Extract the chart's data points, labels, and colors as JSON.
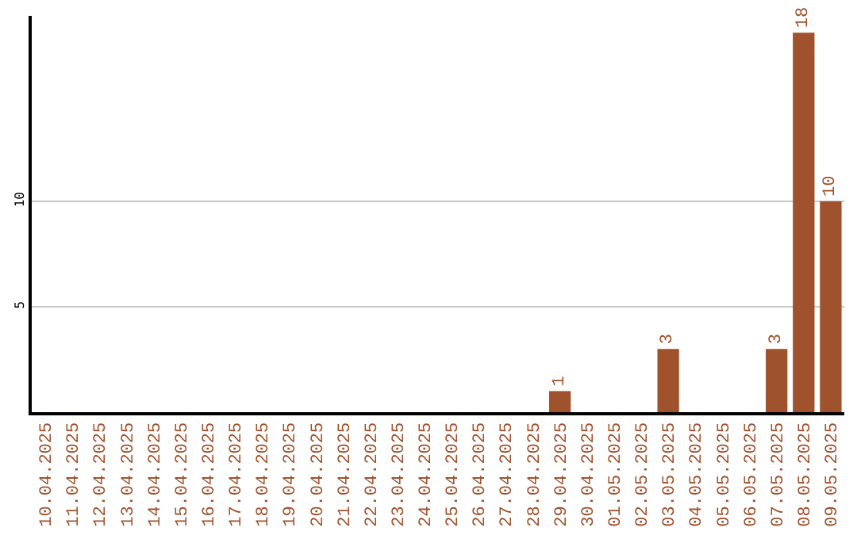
{
  "chart_data": {
    "type": "bar",
    "categories": [
      "10.04.2025",
      "11.04.2025",
      "12.04.2025",
      "13.04.2025",
      "14.04.2025",
      "15.04.2025",
      "16.04.2025",
      "17.04.2025",
      "18.04.2025",
      "19.04.2025",
      "20.04.2025",
      "21.04.2025",
      "22.04.2025",
      "23.04.2025",
      "24.04.2025",
      "25.04.2025",
      "26.04.2025",
      "27.04.2025",
      "28.04.2025",
      "29.04.2025",
      "30.04.2025",
      "01.05.2025",
      "02.05.2025",
      "03.05.2025",
      "04.05.2025",
      "05.05.2025",
      "06.05.2025",
      "07.05.2025",
      "08.05.2025",
      "09.05.2025"
    ],
    "values": [
      0,
      0,
      0,
      0,
      0,
      0,
      0,
      0,
      0,
      0,
      0,
      0,
      0,
      0,
      0,
      0,
      0,
      0,
      0,
      1,
      0,
      0,
      0,
      3,
      0,
      0,
      0,
      3,
      18,
      10
    ],
    "value_labels": [
      null,
      null,
      null,
      null,
      null,
      null,
      null,
      null,
      null,
      null,
      null,
      null,
      null,
      null,
      null,
      null,
      null,
      null,
      null,
      "1",
      null,
      null,
      null,
      "3",
      null,
      null,
      null,
      "3",
      "18",
      "10"
    ],
    "color": "#a0522d",
    "ylim": [
      0,
      18.8
    ],
    "yticks": [
      5,
      10
    ],
    "grid": "y",
    "legend": false
  }
}
